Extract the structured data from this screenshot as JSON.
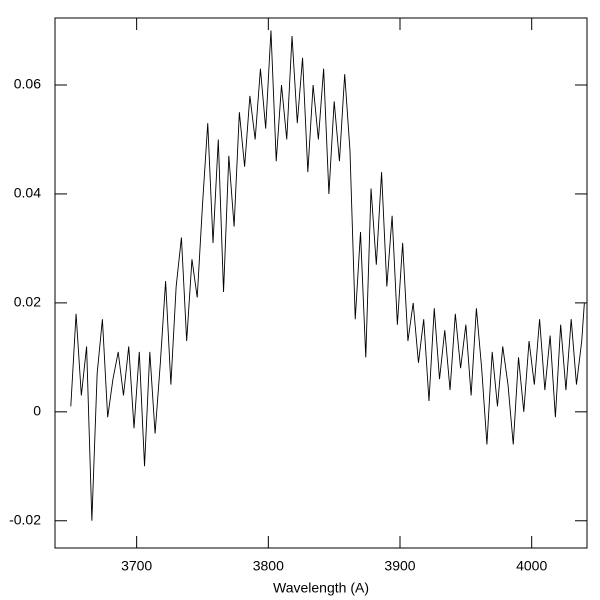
{
  "chart_data": {
    "type": "line",
    "x_label": "Wavelength (A)",
    "x": [
      3650,
      3654,
      3658,
      3662,
      3666,
      3670,
      3674,
      3678,
      3682,
      3686,
      3690,
      3694,
      3698,
      3702,
      3706,
      3710,
      3714,
      3718,
      3722,
      3726,
      3730,
      3734,
      3738,
      3742,
      3746,
      3750,
      3754,
      3758,
      3762,
      3766,
      3770,
      3774,
      3778,
      3782,
      3786,
      3790,
      3794,
      3798,
      3802,
      3806,
      3810,
      3814,
      3818,
      3822,
      3826,
      3830,
      3834,
      3838,
      3842,
      3846,
      3850,
      3854,
      3858,
      3862,
      3866,
      3870,
      3874,
      3878,
      3882,
      3886,
      3890,
      3894,
      3898,
      3902,
      3906,
      3910,
      3914,
      3918,
      3922,
      3926,
      3930,
      3934,
      3938,
      3942,
      3946,
      3950,
      3954,
      3958,
      3962,
      3966,
      3970,
      3974,
      3978,
      3982,
      3986,
      3990,
      3994,
      3998,
      4002,
      4006,
      4010,
      4014,
      4018,
      4022,
      4026,
      4030,
      4034,
      4038,
      4040
    ],
    "values": [
      0.001,
      0.018,
      0.003,
      0.012,
      -0.02,
      0.007,
      0.017,
      -0.001,
      0.006,
      0.011,
      0.003,
      0.012,
      -0.003,
      0.011,
      -0.01,
      0.011,
      -0.004,
      0.009,
      0.024,
      0.005,
      0.023,
      0.032,
      0.013,
      0.028,
      0.021,
      0.038,
      0.053,
      0.031,
      0.05,
      0.022,
      0.047,
      0.034,
      0.055,
      0.045,
      0.058,
      0.05,
      0.063,
      0.052,
      0.07,
      0.046,
      0.06,
      0.05,
      0.069,
      0.053,
      0.065,
      0.044,
      0.06,
      0.05,
      0.063,
      0.04,
      0.057,
      0.046,
      0.062,
      0.048,
      0.017,
      0.033,
      0.01,
      0.041,
      0.027,
      0.044,
      0.023,
      0.036,
      0.016,
      0.031,
      0.013,
      0.02,
      0.009,
      0.017,
      0.002,
      0.019,
      0.006,
      0.015,
      0.004,
      0.018,
      0.008,
      0.016,
      0.003,
      0.019,
      0.008,
      -0.006,
      0.011,
      0.001,
      0.012,
      0.005,
      -0.006,
      0.01,
      0.0,
      0.013,
      0.005,
      0.017,
      0.004,
      0.014,
      -0.001,
      0.016,
      0.004,
      0.017,
      0.005,
      0.013,
      0.02
    ],
    "color": "#000000",
    "xlim": [
      3638,
      4042
    ],
    "xticks": [
      3700,
      3800,
      3900,
      4000
    ],
    "ylim": [
      -0.025,
      0.0723
    ],
    "yticks": [
      -0.02,
      0,
      0.02,
      0.04,
      0.06
    ]
  }
}
